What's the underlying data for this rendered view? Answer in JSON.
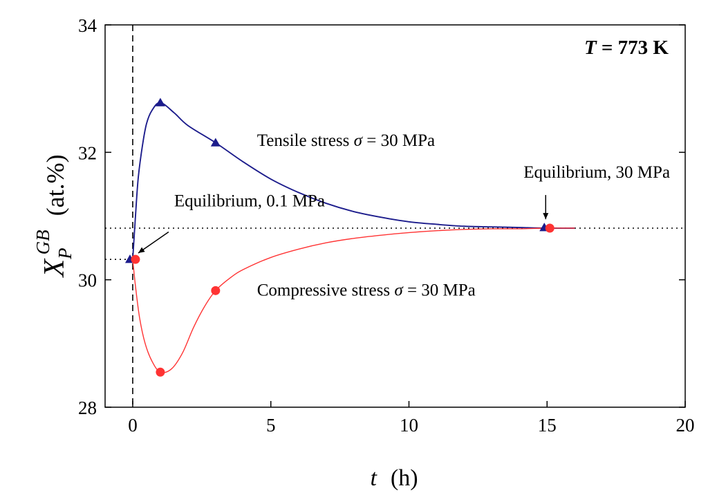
{
  "chart_data": {
    "type": "line",
    "title": "",
    "condition": {
      "symbol": "T",
      "rest": " = 773 K"
    },
    "xlabel": {
      "symbol": "t",
      "unit": "(h)"
    },
    "ylabel": {
      "symbol": "X",
      "sub": "P",
      "sup": "GB",
      "unit": "(at.%)"
    },
    "xlim": [
      -1,
      20
    ],
    "ylim": [
      28,
      34
    ],
    "xticks": [
      0,
      5,
      10,
      15,
      20
    ],
    "yticks": [
      28,
      30,
      32,
      34
    ],
    "grid": false,
    "series": [
      {
        "name": "Tensile stress σ = 30 MPa",
        "color": "#1c1c8c",
        "marker": "triangle",
        "markers": [
          {
            "x": -0.1,
            "y": 30.32
          },
          {
            "x": 1.0,
            "y": 32.78
          },
          {
            "x": 3.0,
            "y": 32.15
          },
          {
            "x": 14.9,
            "y": 30.82
          }
        ],
        "curve": [
          {
            "x": 0.0,
            "y": 30.32
          },
          {
            "x": 0.1,
            "y": 31.0
          },
          {
            "x": 0.2,
            "y": 31.6
          },
          {
            "x": 0.35,
            "y": 32.1
          },
          {
            "x": 0.5,
            "y": 32.45
          },
          {
            "x": 0.7,
            "y": 32.66
          },
          {
            "x": 1.0,
            "y": 32.78
          },
          {
            "x": 1.5,
            "y": 32.62
          },
          {
            "x": 2.0,
            "y": 32.42
          },
          {
            "x": 3.0,
            "y": 32.15
          },
          {
            "x": 4.0,
            "y": 31.85
          },
          {
            "x": 5.0,
            "y": 31.58
          },
          {
            "x": 6.0,
            "y": 31.37
          },
          {
            "x": 7.0,
            "y": 31.2
          },
          {
            "x": 8.0,
            "y": 31.07
          },
          {
            "x": 9.0,
            "y": 30.98
          },
          {
            "x": 10.0,
            "y": 30.91
          },
          {
            "x": 11.0,
            "y": 30.87
          },
          {
            "x": 12.0,
            "y": 30.84
          },
          {
            "x": 13.0,
            "y": 30.83
          },
          {
            "x": 14.0,
            "y": 30.82
          },
          {
            "x": 15.0,
            "y": 30.81
          },
          {
            "x": 16.0,
            "y": 30.81
          }
        ]
      },
      {
        "name": "Compressive stress σ = 30 MPa",
        "color": "#ff3333",
        "marker": "circle",
        "markers": [
          {
            "x": 0.1,
            "y": 30.32
          },
          {
            "x": 1.0,
            "y": 28.55
          },
          {
            "x": 3.0,
            "y": 29.83
          },
          {
            "x": 15.1,
            "y": 30.81
          }
        ],
        "curve": [
          {
            "x": 0.0,
            "y": 30.32
          },
          {
            "x": 0.1,
            "y": 29.9
          },
          {
            "x": 0.25,
            "y": 29.4
          },
          {
            "x": 0.45,
            "y": 29.0
          },
          {
            "x": 0.7,
            "y": 28.72
          },
          {
            "x": 1.0,
            "y": 28.55
          },
          {
            "x": 1.4,
            "y": 28.6
          },
          {
            "x": 1.8,
            "y": 28.85
          },
          {
            "x": 2.2,
            "y": 29.25
          },
          {
            "x": 2.6,
            "y": 29.58
          },
          {
            "x": 3.0,
            "y": 29.83
          },
          {
            "x": 3.5,
            "y": 30.02
          },
          {
            "x": 4.0,
            "y": 30.16
          },
          {
            "x": 5.0,
            "y": 30.35
          },
          {
            "x": 6.0,
            "y": 30.48
          },
          {
            "x": 7.0,
            "y": 30.58
          },
          {
            "x": 8.0,
            "y": 30.65
          },
          {
            "x": 9.0,
            "y": 30.7
          },
          {
            "x": 10.0,
            "y": 30.74
          },
          {
            "x": 11.0,
            "y": 30.77
          },
          {
            "x": 12.0,
            "y": 30.79
          },
          {
            "x": 13.0,
            "y": 30.8
          },
          {
            "x": 14.0,
            "y": 30.8
          },
          {
            "x": 15.0,
            "y": 30.81
          },
          {
            "x": 16.0,
            "y": 30.81
          }
        ]
      }
    ],
    "reference_lines": [
      {
        "name": "equilibrium-30-mpa-line",
        "orientation": "horizontal",
        "y": 30.81,
        "x_from": -1,
        "x_to": 20,
        "style": "dotted"
      },
      {
        "name": "equilibrium-0-1-mpa-line",
        "orientation": "horizontal",
        "y": 30.32,
        "x_from": -1,
        "x_to": 0,
        "style": "dotted"
      },
      {
        "name": "time-zero-line",
        "orientation": "vertical",
        "x": 0,
        "style": "dashed"
      }
    ],
    "annotations": [
      {
        "id": "tensile",
        "text": "Tensile stress ",
        "symbol": "σ",
        "rest": " = 30 MPa",
        "x": 4.5,
        "y": 32.1
      },
      {
        "id": "compressive",
        "text": "Compressive stress ",
        "symbol": "σ",
        "rest": " = 30 MPa",
        "x": 4.5,
        "y": 29.75
      },
      {
        "id": "eq01",
        "text": "Equilibrium, 0.1 MPa",
        "x": 1.5,
        "y": 31.15,
        "arrow_from": {
          "x": 1.3,
          "y": 30.75
        },
        "arrow_to": {
          "x": 0.2,
          "y": 30.42
        }
      },
      {
        "id": "eq30",
        "text": "Equilibrium, 30 MPa",
        "x": 16.8,
        "y": 31.6,
        "arrow_from": {
          "x": 14.95,
          "y": 31.33
        },
        "arrow_to": {
          "x": 14.95,
          "y": 30.95
        }
      }
    ]
  }
}
